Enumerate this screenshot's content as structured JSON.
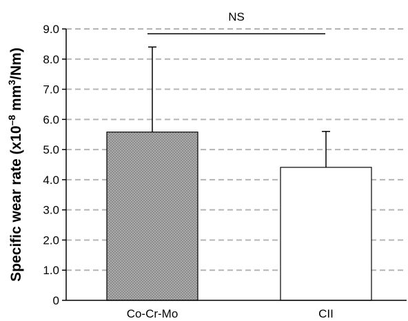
{
  "chart_data": {
    "type": "bar",
    "categories": [
      "Co-Cr-Mo",
      "CII"
    ],
    "values": [
      5.58,
      4.41
    ],
    "error_upper": [
      8.4,
      5.6
    ],
    "ylabel_main": "Specific wear rate (x10",
    "ylabel_exp": "–8",
    "ylabel_unit": " mm",
    "ylabel_unit_exp": "3",
    "ylabel_end": "/Nm)",
    "ylim": [
      0,
      9.0
    ],
    "yticks": [
      0,
      1.0,
      2.0,
      3.0,
      4.0,
      5.0,
      6.0,
      7.0,
      8.0,
      9.0
    ],
    "ytick_labels": [
      "0",
      "1.0",
      "2.0",
      "3.0",
      "4.0",
      "5.0",
      "6.0",
      "7.0",
      "8.0",
      "9.0"
    ],
    "grid": "dashed-horizontal",
    "annotation": "NS",
    "bar_styles": [
      "dotted-gray",
      "white"
    ],
    "colors": {
      "bar1_fill": "#8c8c8c",
      "bar2_fill": "#ffffff",
      "grid": "#b4b4b4",
      "axis": "#000000"
    }
  }
}
